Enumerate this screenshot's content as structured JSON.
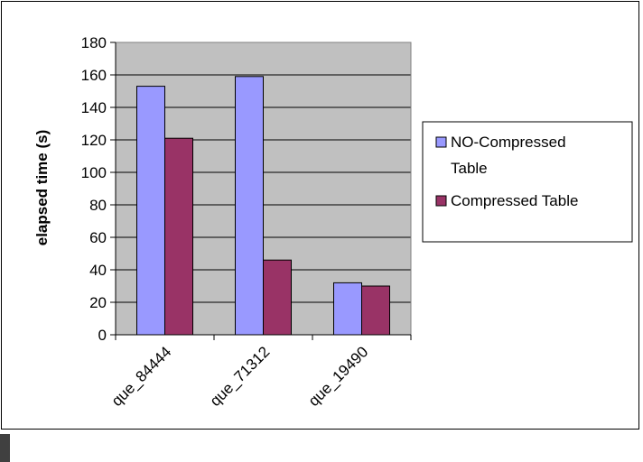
{
  "chart_data": {
    "type": "bar",
    "categories": [
      "que_84444",
      "que_71312",
      "que_19490"
    ],
    "series": [
      {
        "name": "NO-Compressed Table",
        "values": [
          153,
          159,
          32
        ]
      },
      {
        "name": "Compressed Table",
        "values": [
          121,
          46,
          30
        ]
      }
    ],
    "xlabel": "",
    "ylabel": "elapsed time (s)",
    "ylim": [
      0,
      180
    ],
    "yticks": [
      0,
      20,
      40,
      60,
      80,
      100,
      120,
      140,
      160,
      180
    ],
    "grid": true,
    "legend": "right",
    "colors": {
      "plot_background": "#c0c0c0",
      "series": [
        "#9999ff",
        "#993366"
      ],
      "border": "#000000"
    }
  }
}
